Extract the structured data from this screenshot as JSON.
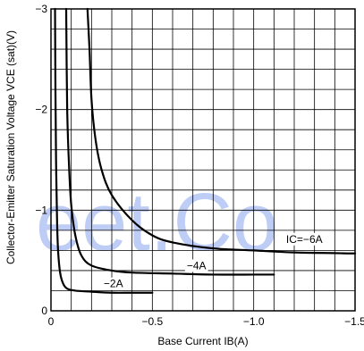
{
  "chart_data": {
    "type": "line",
    "xlabel": "Base Current IB(A)",
    "ylabel": "Collector-Emitter Saturation Voltage VCE (sat)(V)",
    "xlim": [
      0,
      -1.5
    ],
    "ylim": [
      0,
      -3
    ],
    "grid": true,
    "x_ticks": [
      {
        "value": 0,
        "label": "0"
      },
      {
        "value": -0.5,
        "label": "−0.5"
      },
      {
        "value": -1.0,
        "label": "−1.0"
      },
      {
        "value": -1.5,
        "label": "−1.5"
      }
    ],
    "y_ticks": [
      {
        "value": 0,
        "label": "0"
      },
      {
        "value": -1,
        "label": "−1"
      },
      {
        "value": -2,
        "label": "−2"
      },
      {
        "value": -3,
        "label": "−3"
      }
    ],
    "series": [
      {
        "name": "−2A",
        "x": [
          -0.02,
          -0.022,
          -0.025,
          -0.03,
          -0.035,
          -0.045,
          -0.06,
          -0.08,
          -0.12,
          -0.2,
          -0.3,
          -0.4,
          -0.5
        ],
        "y": [
          -3.0,
          -2.2,
          -1.5,
          -0.9,
          -0.6,
          -0.38,
          -0.27,
          -0.22,
          -0.2,
          -0.19,
          -0.18,
          -0.18,
          -0.18
        ]
      },
      {
        "name": "−4A",
        "x": [
          -0.075,
          -0.08,
          -0.09,
          -0.1,
          -0.12,
          -0.15,
          -0.2,
          -0.3,
          -0.4,
          -0.6,
          -0.8,
          -1.0,
          -1.1
        ],
        "y": [
          -3.0,
          -2.0,
          -1.4,
          -1.05,
          -0.75,
          -0.55,
          -0.45,
          -0.4,
          -0.38,
          -0.37,
          -0.36,
          -0.36,
          -0.36
        ]
      },
      {
        "name": "IC=−6A",
        "x": [
          -0.18,
          -0.19,
          -0.2,
          -0.22,
          -0.25,
          -0.3,
          -0.4,
          -0.5,
          -0.6,
          -0.8,
          -1.0,
          -1.2,
          -1.5
        ],
        "y": [
          -3.0,
          -2.6,
          -2.1,
          -1.7,
          -1.4,
          -1.15,
          -0.9,
          -0.75,
          -0.68,
          -0.62,
          -0.6,
          -0.58,
          -0.57
        ]
      }
    ]
  },
  "watermark": "eet.Co"
}
